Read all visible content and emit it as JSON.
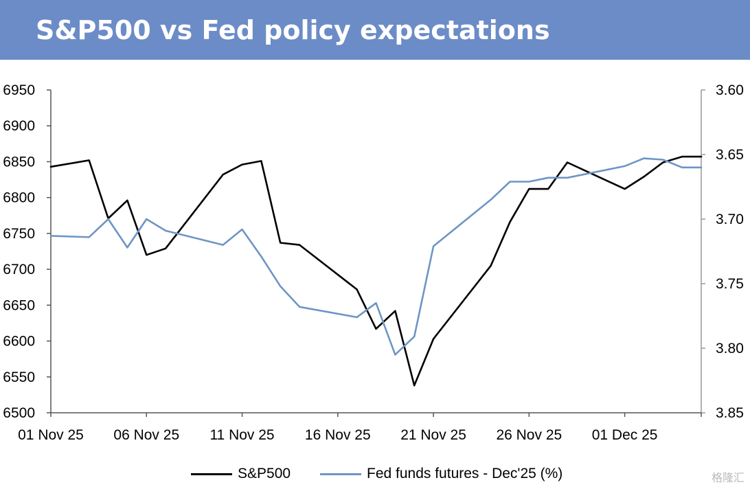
{
  "title": "S&P500 vs Fed policy expectations",
  "colors": {
    "title_bg": "#6b8cc7",
    "sp500": "#000000",
    "fed": "#6e95c4"
  },
  "chart_data": {
    "type": "line",
    "title": "S&P500 vs Fed policy expectations",
    "x_tick_labels": [
      "01 Nov 25",
      "06 Nov 25",
      "11 Nov 25",
      "16 Nov 25",
      "21 Nov 25",
      "26 Nov 25",
      "01 Dec 25"
    ],
    "left_axis": {
      "min": 6500,
      "max": 6950,
      "ticks": [
        6950,
        6900,
        6850,
        6800,
        6750,
        6700,
        6650,
        6600,
        6550,
        6500
      ]
    },
    "right_axis": {
      "min": 3.6,
      "max": 3.85,
      "inverted": true,
      "ticks": [
        "3.60",
        "3.65",
        "3.70",
        "3.75",
        "3.80",
        "3.85"
      ]
    },
    "grid": false,
    "legend_position": "bottom",
    "series": [
      {
        "name": "S&P500",
        "axis": "left",
        "points": [
          [
            "2025-11-01",
            6843
          ],
          [
            "2025-11-03",
            6852
          ],
          [
            "2025-11-04",
            6771
          ],
          [
            "2025-11-05",
            6796
          ],
          [
            "2025-11-06",
            6720
          ],
          [
            "2025-11-07",
            6729
          ],
          [
            "2025-11-10",
            6832
          ],
          [
            "2025-11-11",
            6846
          ],
          [
            "2025-11-12",
            6851
          ],
          [
            "2025-11-13",
            6737
          ],
          [
            "2025-11-14",
            6734
          ],
          [
            "2025-11-17",
            6672
          ],
          [
            "2025-11-18",
            6617
          ],
          [
            "2025-11-19",
            6642
          ],
          [
            "2025-11-20",
            6538
          ],
          [
            "2025-11-21",
            6603
          ],
          [
            "2025-11-24",
            6705
          ],
          [
            "2025-11-25",
            6766
          ],
          [
            "2025-11-26",
            6812
          ],
          [
            "2025-11-27",
            6812
          ],
          [
            "2025-11-28",
            6849
          ],
          [
            "2025-12-01",
            6812
          ],
          [
            "2025-12-02",
            6829
          ],
          [
            "2025-12-03",
            6849
          ],
          [
            "2025-12-04",
            6857
          ],
          [
            "2025-12-05",
            6857
          ]
        ]
      },
      {
        "name": "Fed funds futures - Dec'25 (%)",
        "axis": "right",
        "points": [
          [
            "2025-11-01",
            3.713
          ],
          [
            "2025-11-03",
            3.714
          ],
          [
            "2025-11-04",
            3.7
          ],
          [
            "2025-11-05",
            3.722
          ],
          [
            "2025-11-06",
            3.7
          ],
          [
            "2025-11-07",
            3.709
          ],
          [
            "2025-11-10",
            3.72
          ],
          [
            "2025-11-11",
            3.708
          ],
          [
            "2025-11-12",
            3.729
          ],
          [
            "2025-11-13",
            3.752
          ],
          [
            "2025-11-14",
            3.768
          ],
          [
            "2025-11-17",
            3.776
          ],
          [
            "2025-11-18",
            3.765
          ],
          [
            "2025-11-19",
            3.805
          ],
          [
            "2025-11-20",
            3.791
          ],
          [
            "2025-11-21",
            3.721
          ],
          [
            "2025-11-24",
            3.685
          ],
          [
            "2025-11-25",
            3.671
          ],
          [
            "2025-11-26",
            3.671
          ],
          [
            "2025-11-27",
            3.668
          ],
          [
            "2025-11-28",
            3.668
          ],
          [
            "2025-12-01",
            3.659
          ],
          [
            "2025-12-02",
            3.653
          ],
          [
            "2025-12-03",
            3.654
          ],
          [
            "2025-12-04",
            3.66
          ],
          [
            "2025-12-05",
            3.66
          ]
        ]
      }
    ]
  },
  "legend": {
    "sp500_label": "S&P500",
    "fed_label": "Fed funds futures - Dec'25 (%)"
  },
  "watermark": "格隆汇"
}
